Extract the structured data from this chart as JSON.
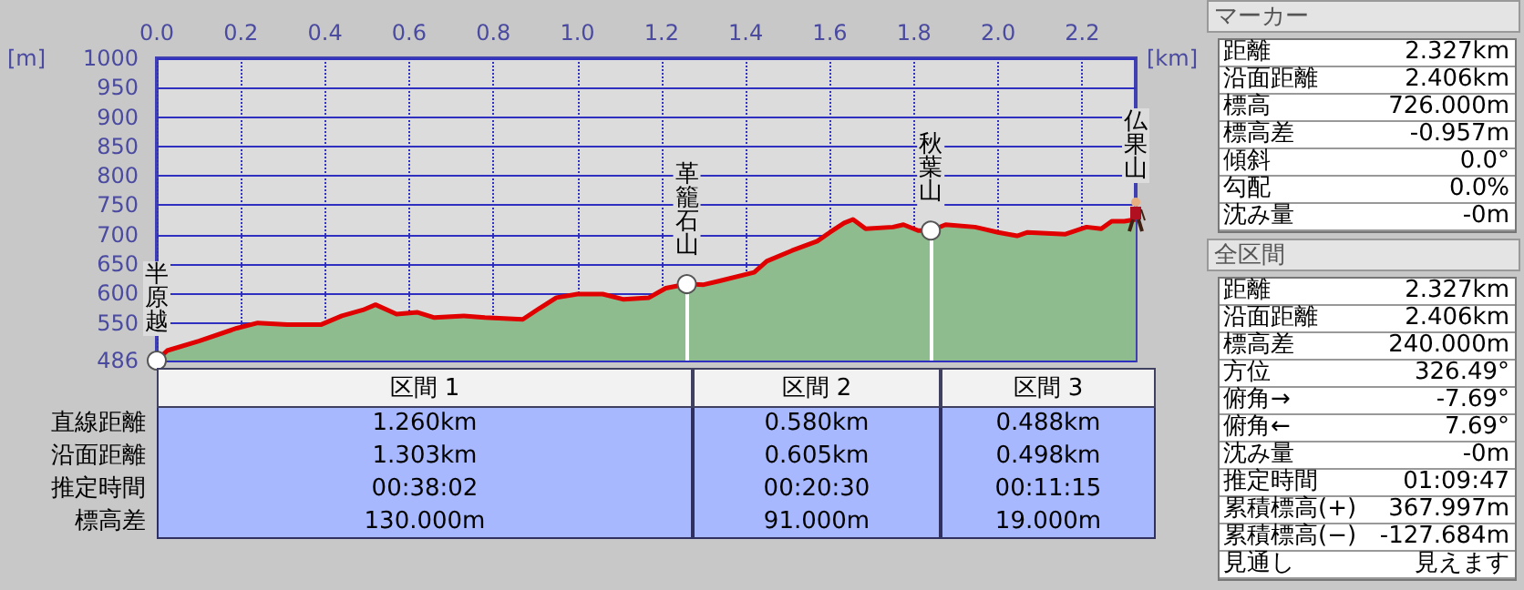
{
  "chart_data": [
    {
      "type": "area",
      "xlabel": "[km]",
      "ylabel": "[m]",
      "x": [
        0,
        0.025,
        0.1,
        0.19,
        0.24,
        0.31,
        0.39,
        0.44,
        0.49,
        0.52,
        0.57,
        0.62,
        0.66,
        0.73,
        0.78,
        0.87,
        0.91,
        0.95,
        1.0,
        1.06,
        1.11,
        1.17,
        1.21,
        1.26,
        1.3,
        1.336,
        1.42,
        1.45,
        1.51,
        1.57,
        1.6,
        1.634,
        1.655,
        1.685,
        1.75,
        1.775,
        1.81,
        1.84,
        1.875,
        1.945,
        2.0,
        2.045,
        2.07,
        2.16,
        2.21,
        2.245,
        2.27,
        2.3,
        2.327
      ],
      "series": [
        {
          "color": "#8fbc8f",
          "values": [
            486,
            503,
            519,
            541,
            550,
            547,
            547,
            562,
            572,
            581,
            565,
            568,
            559,
            562,
            559,
            556,
            575,
            593,
            599,
            599,
            590,
            593,
            609,
            616,
            615,
            621,
            636,
            655,
            673,
            689,
            704,
            720,
            726,
            710,
            713,
            717,
            707,
            707,
            717,
            713,
            704,
            698,
            704,
            701,
            713,
            710,
            723,
            723,
            726
          ]
        }
      ],
      "xlim": [
        0,
        2.327
      ],
      "xticks": [
        {
          "value": 0,
          "label": "0.0"
        },
        {
          "value": 0.2,
          "label": "0.2"
        },
        {
          "value": 0.4,
          "label": "0.4"
        },
        {
          "value": 0.6,
          "label": "0.6"
        },
        {
          "value": 0.8,
          "label": "0.8"
        },
        {
          "value": 1.0,
          "label": "1.0"
        },
        {
          "value": 1.2,
          "label": "1.2"
        },
        {
          "value": 1.4,
          "label": "1.4"
        },
        {
          "value": 1.6,
          "label": "1.6"
        },
        {
          "value": 1.8,
          "label": "1.8"
        },
        {
          "value": 2.0,
          "label": "2.0"
        },
        {
          "value": 2.2,
          "label": "2.2"
        }
      ],
      "ylim": [
        486,
        1000
      ],
      "yticks": [
        486,
        550,
        600,
        650,
        700,
        750,
        800,
        850,
        900,
        950,
        1000
      ],
      "grid": true,
      "annotations": [
        {
          "text": "半原越",
          "x": 0,
          "y": 486
        },
        {
          "text": "革籠石山",
          "x": 1.26,
          "y": 616
        },
        {
          "text": "秋葉山",
          "x": 1.84,
          "y": 707
        },
        {
          "text": "仏果山",
          "x": 2.327,
          "y": 726
        }
      ]
    },
    {
      "type": "other",
      "categories": [
        "区間 1",
        "区間 2",
        "区間 3"
      ],
      "y_categories": [
        "直線距離",
        "沿面距離",
        "推定時間",
        "標高差"
      ],
      "cell_labels": [
        [
          "1.260km",
          "0.580km",
          "0.488km"
        ],
        [
          "1.303km",
          "0.605km",
          "0.498km"
        ],
        [
          "00:38:02",
          "00:20:30",
          "00:11:15"
        ],
        [
          "130.000m",
          "91.000m",
          "19.000m"
        ]
      ]
    },
    {
      "type": "other",
      "title": "マーカー",
      "y_categories": [
        "距離",
        "沿面距離",
        "標高",
        "標高差",
        "傾斜",
        "勾配",
        "沈み量"
      ],
      "cell_labels": [
        [
          "2.327km"
        ],
        [
          "2.406km"
        ],
        [
          "726.000m"
        ],
        [
          "-0.957m"
        ],
        [
          "0.0°"
        ],
        [
          "0.0%"
        ],
        [
          "-0m"
        ]
      ]
    },
    {
      "type": "other",
      "title": "全区間",
      "y_categories": [
        "距離",
        "沿面距離",
        "標高差",
        "方位",
        "俯角→",
        "俯角←",
        "沈み量",
        "推定時間",
        "累積標高(+)",
        "累積標高(−)",
        "見通し"
      ],
      "cell_labels": [
        [
          "2.327km"
        ],
        [
          "2.406km"
        ],
        [
          "240.000m"
        ],
        [
          "326.49°"
        ],
        [
          "-7.69°"
        ],
        [
          "7.69°"
        ],
        [
          "-0m"
        ],
        [
          "01:09:47"
        ],
        [
          "367.997m"
        ],
        [
          "-127.684m"
        ],
        [
          "見えます"
        ]
      ]
    }
  ]
}
